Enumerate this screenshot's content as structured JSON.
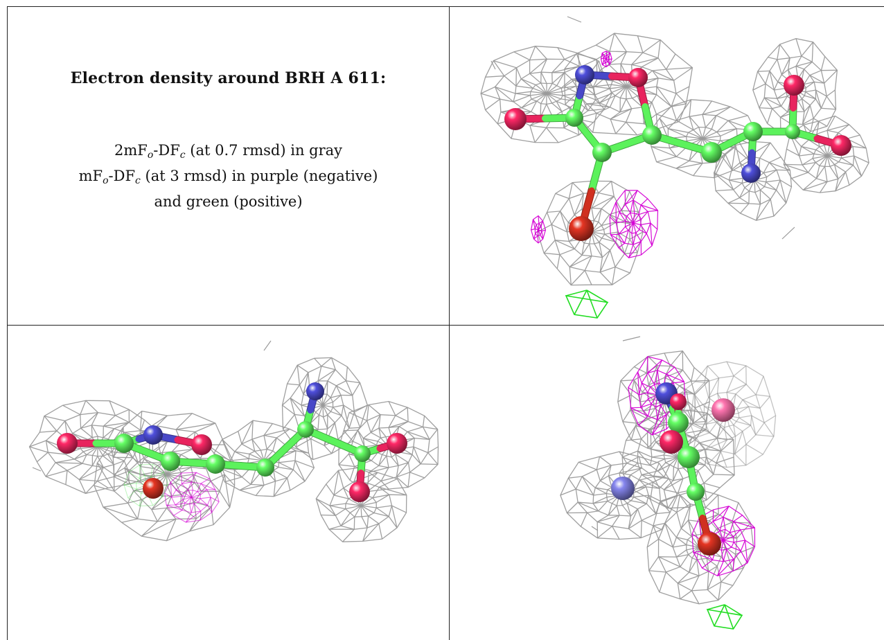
{
  "title": "Electron density around BRH A 611:",
  "legend": {
    "line1": {
      "pre": "2mF",
      "sub1": "o",
      "mid": "-DF",
      "sub2": "c",
      "post": " (at 0.7 rmsd) in gray"
    },
    "line2": {
      "pre": "mF",
      "sub1": "o",
      "mid": "-DF",
      "sub2": "c",
      "post": " (at 3 rmsd) in purple (negative)"
    },
    "line3": "and green (positive)"
  },
  "colors": {
    "mesh_2fofc": "#9a9a9a",
    "mesh_negative": "#d400d4",
    "mesh_positive": "#22dd22",
    "carbon": "#5cf25c",
    "oxygen": "#e8245e",
    "nitrogen": "#4848c8",
    "highlight_oxygen": "#d03020"
  },
  "panels": [
    {
      "view": "top-right"
    },
    {
      "view": "bottom-left"
    },
    {
      "view": "bottom-right"
    }
  ]
}
